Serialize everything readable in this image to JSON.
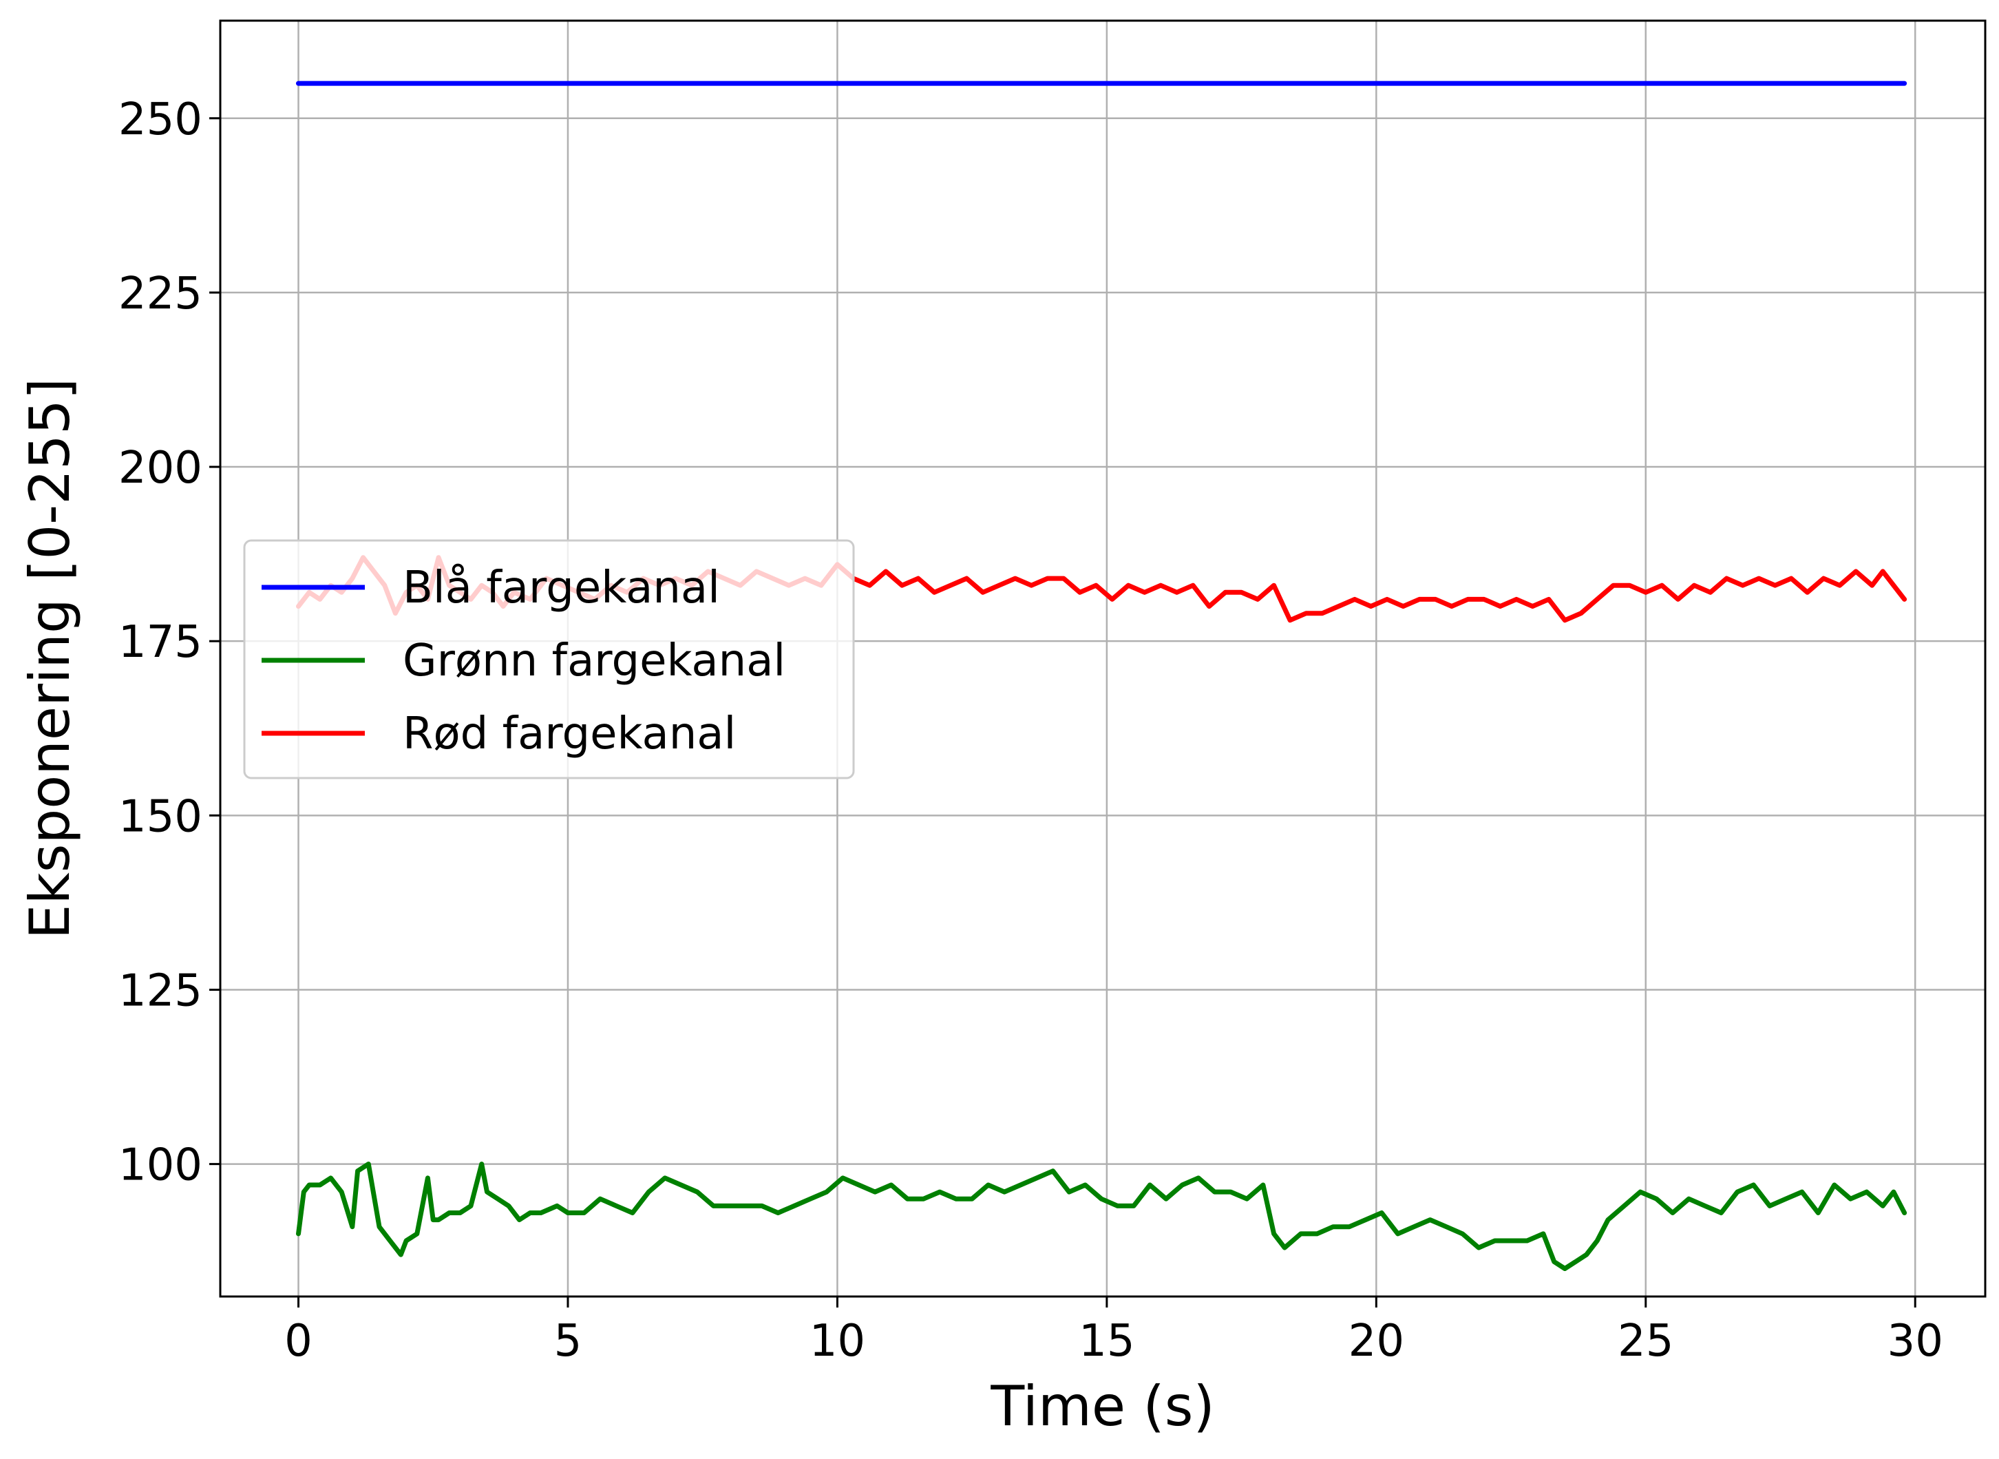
{
  "chart_data": {
    "type": "line",
    "title": "",
    "xlabel": "Time (s)",
    "ylabel": "Eksponering [0-255]",
    "xlim": [
      -1.45,
      31.3
    ],
    "ylim": [
      81,
      264
    ],
    "xticks": [
      0,
      5,
      10,
      15,
      20,
      25,
      30
    ],
    "yticks": [
      100,
      125,
      150,
      175,
      200,
      225,
      250
    ],
    "grid": true,
    "legend_position": "center-left",
    "series": [
      {
        "name": "Blå fargekanal",
        "color": "#0000ff",
        "x": [
          0,
          2,
          4,
          6,
          8,
          10,
          12,
          14,
          16,
          18,
          20,
          22,
          24,
          26,
          28,
          29.8
        ],
        "y": [
          255,
          255,
          255,
          255,
          255,
          255,
          255,
          255,
          255,
          255,
          255,
          255,
          255,
          255,
          255,
          255
        ]
      },
      {
        "name": "Grønn fargekanal",
        "color": "#008000",
        "x": [
          0,
          0.1,
          0.2,
          0.4,
          0.6,
          0.8,
          1.0,
          1.1,
          1.3,
          1.5,
          1.7,
          1.9,
          2.0,
          2.2,
          2.4,
          2.5,
          2.6,
          2.8,
          3.0,
          3.2,
          3.4,
          3.5,
          3.7,
          3.9,
          4.1,
          4.3,
          4.5,
          4.8,
          5.0,
          5.3,
          5.6,
          5.9,
          6.2,
          6.5,
          6.8,
          7.1,
          7.4,
          7.7,
          8.0,
          8.3,
          8.6,
          8.9,
          9.2,
          9.5,
          9.8,
          10.1,
          10.4,
          10.7,
          11.0,
          11.3,
          11.6,
          11.9,
          12.2,
          12.5,
          12.8,
          13.1,
          13.4,
          13.7,
          14.0,
          14.3,
          14.6,
          14.9,
          15.2,
          15.5,
          15.8,
          16.1,
          16.4,
          16.7,
          17.0,
          17.3,
          17.6,
          17.9,
          18.1,
          18.3,
          18.6,
          18.9,
          19.2,
          19.5,
          19.8,
          20.1,
          20.4,
          20.7,
          21.0,
          21.3,
          21.6,
          21.9,
          22.2,
          22.5,
          22.8,
          23.1,
          23.3,
          23.5,
          23.7,
          23.9,
          24.1,
          24.3,
          24.6,
          24.9,
          25.2,
          25.5,
          25.8,
          26.1,
          26.4,
          26.7,
          27.0,
          27.3,
          27.6,
          27.9,
          28.2,
          28.5,
          28.8,
          29.1,
          29.4,
          29.6,
          29.8
        ],
        "y": [
          90,
          96,
          97,
          97,
          98,
          96,
          91,
          99,
          100,
          91,
          89,
          87,
          89,
          90,
          98,
          92,
          92,
          93,
          93,
          94,
          100,
          96,
          95,
          94,
          92,
          93,
          93,
          94,
          93,
          93,
          95,
          94,
          93,
          96,
          98,
          97,
          96,
          94,
          94,
          94,
          94,
          93,
          94,
          95,
          96,
          98,
          97,
          96,
          97,
          95,
          95,
          96,
          95,
          95,
          97,
          96,
          97,
          98,
          99,
          96,
          97,
          95,
          94,
          94,
          97,
          95,
          97,
          98,
          96,
          96,
          95,
          97,
          90,
          88,
          90,
          90,
          91,
          91,
          92,
          93,
          90,
          91,
          92,
          91,
          90,
          88,
          89,
          89,
          89,
          90,
          86,
          85,
          86,
          87,
          89,
          92,
          94,
          96,
          95,
          93,
          95,
          94,
          93,
          96,
          97,
          94,
          95,
          96,
          93,
          97,
          95,
          96,
          94,
          96,
          93
        ]
      },
      {
        "name": "Rød fargekanal",
        "color": "#ff0000",
        "x": [
          0,
          0.2,
          0.4,
          0.6,
          0.8,
          1.0,
          1.2,
          1.4,
          1.6,
          1.8,
          2.0,
          2.2,
          2.4,
          2.6,
          2.8,
          3.0,
          3.2,
          3.4,
          3.6,
          3.8,
          4.0,
          4.3,
          4.6,
          4.9,
          5.2,
          5.5,
          5.8,
          6.1,
          6.4,
          6.7,
          7.0,
          7.3,
          7.6,
          7.9,
          8.2,
          8.5,
          8.8,
          9.1,
          9.4,
          9.7,
          10.0,
          10.3,
          10.6,
          10.9,
          11.2,
          11.5,
          11.8,
          12.1,
          12.4,
          12.7,
          13.0,
          13.3,
          13.6,
          13.9,
          14.2,
          14.5,
          14.8,
          15.1,
          15.4,
          15.7,
          16.0,
          16.3,
          16.6,
          16.9,
          17.2,
          17.5,
          17.8,
          18.1,
          18.4,
          18.7,
          19.0,
          19.3,
          19.6,
          19.9,
          20.2,
          20.5,
          20.8,
          21.1,
          21.4,
          21.7,
          22.0,
          22.3,
          22.6,
          22.9,
          23.2,
          23.5,
          23.8,
          24.1,
          24.4,
          24.7,
          25.0,
          25.3,
          25.6,
          25.9,
          26.2,
          26.5,
          26.8,
          27.1,
          27.4,
          27.7,
          28.0,
          28.3,
          28.6,
          28.9,
          29.2,
          29.4,
          29.6,
          29.8
        ],
        "y": [
          180,
          182,
          181,
          183,
          182,
          184,
          187,
          185,
          183,
          179,
          182,
          183,
          181,
          187,
          183,
          182,
          181,
          183,
          182,
          180,
          182,
          181,
          184,
          183,
          182,
          181,
          183,
          182,
          184,
          183,
          184,
          183,
          185,
          184,
          183,
          185,
          184,
          183,
          184,
          183,
          186,
          184,
          183,
          185,
          183,
          184,
          182,
          183,
          184,
          182,
          183,
          184,
          183,
          184,
          184,
          182,
          183,
          181,
          183,
          182,
          183,
          182,
          183,
          180,
          182,
          182,
          181,
          183,
          178,
          179,
          179,
          180,
          181,
          180,
          181,
          180,
          181,
          181,
          180,
          181,
          181,
          180,
          181,
          180,
          181,
          178,
          179,
          181,
          183,
          183,
          182,
          183,
          181,
          183,
          182,
          184,
          183,
          184,
          183,
          184,
          182,
          184,
          183,
          185,
          183,
          185,
          183,
          181
        ]
      }
    ]
  }
}
